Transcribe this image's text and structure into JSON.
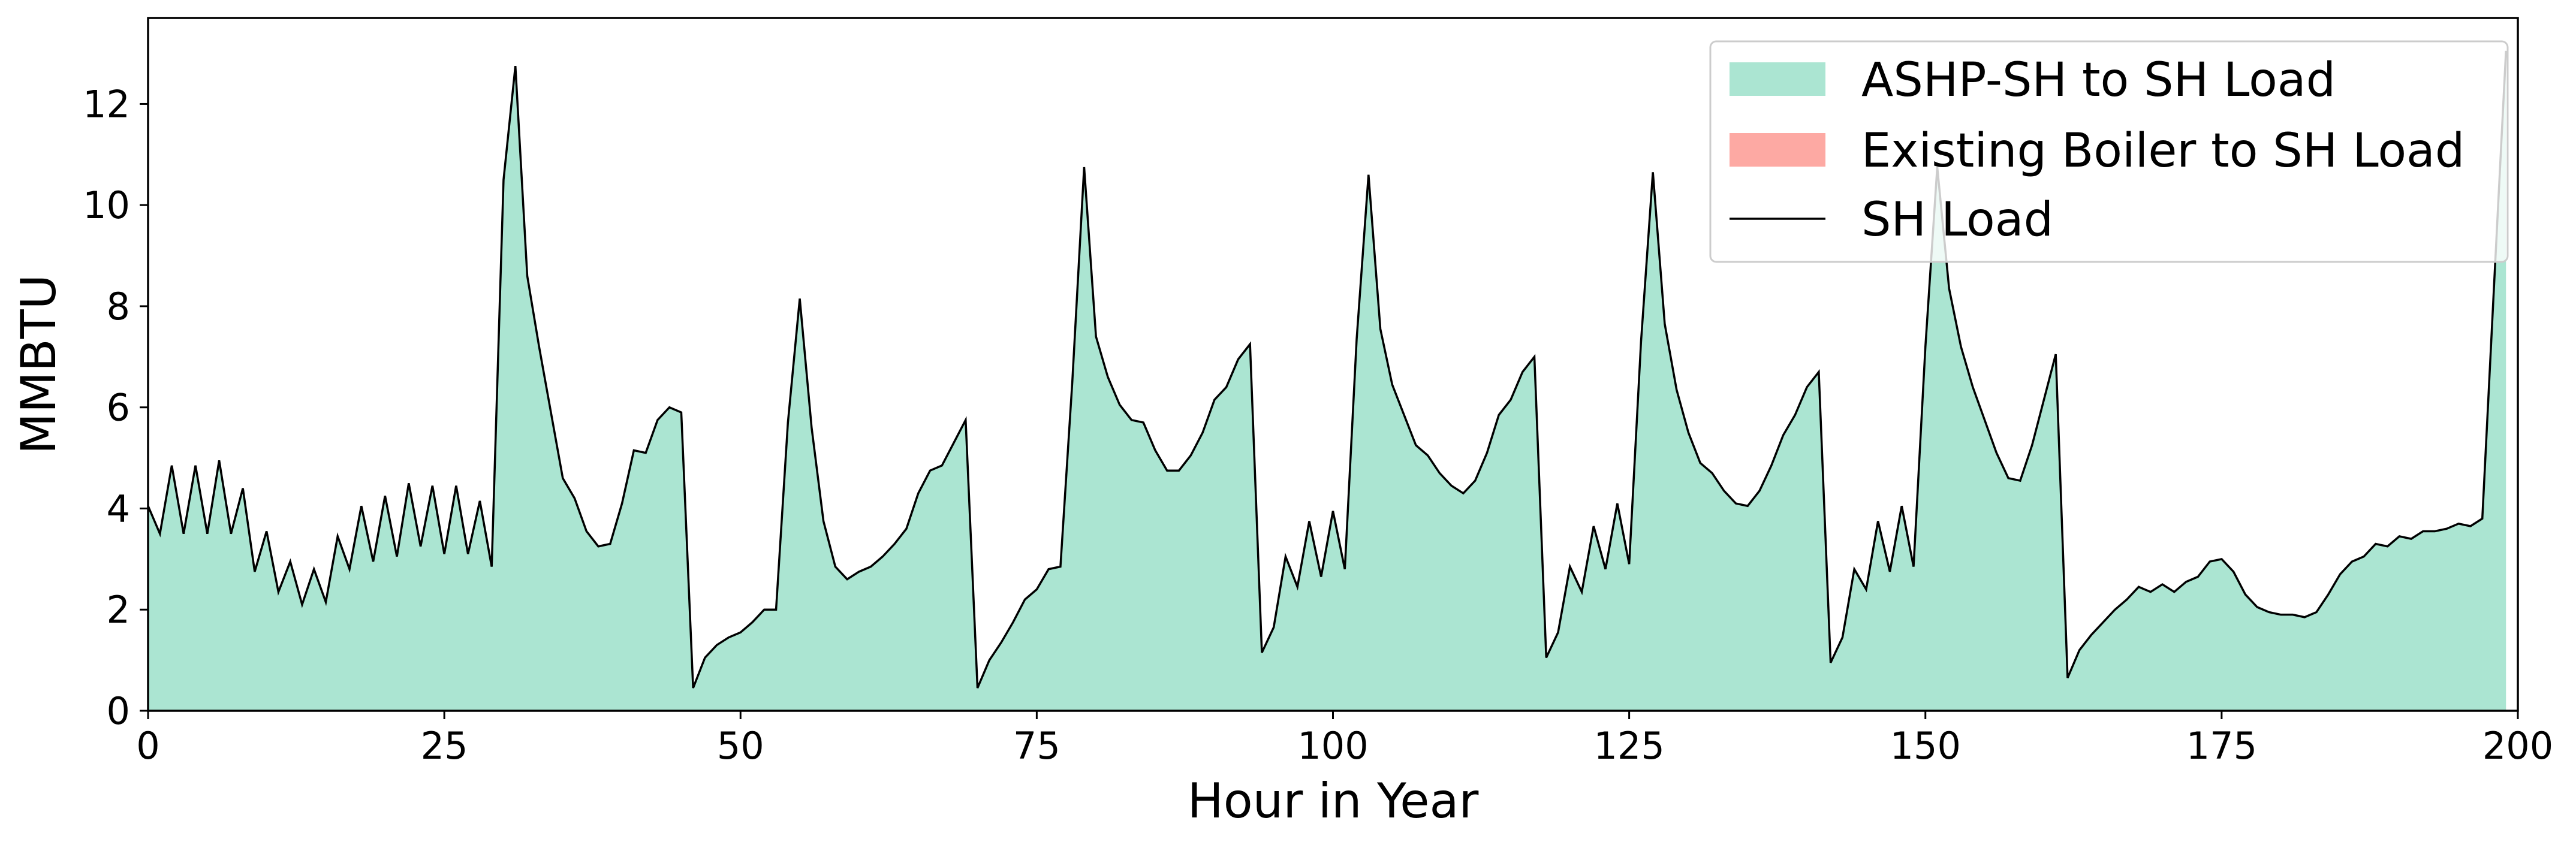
{
  "chart_data": {
    "type": "area",
    "xlabel": "Hour in Year",
    "ylabel": "MMBTU",
    "xlim": [
      0,
      200
    ],
    "ylim": [
      0,
      13.7
    ],
    "x_ticks": [
      0,
      25,
      50,
      75,
      100,
      125,
      150,
      175,
      200
    ],
    "y_ticks": [
      0,
      2,
      4,
      6,
      8,
      10,
      12
    ],
    "grid": false,
    "legend_position": "top-right",
    "series": [
      {
        "name": "ASHP-SH to SH Load",
        "kind": "area",
        "color": "#abe5d2"
      },
      {
        "name": "Existing Boiler to SH Load",
        "kind": "area",
        "color": "#fda9a3"
      },
      {
        "name": "SH Load",
        "kind": "line",
        "color": "#000000"
      }
    ],
    "x": [
      0,
      1,
      2,
      3,
      4,
      5,
      6,
      7,
      8,
      9,
      10,
      11,
      12,
      13,
      14,
      15,
      16,
      17,
      18,
      19,
      20,
      21,
      22,
      23,
      24,
      25,
      26,
      27,
      28,
      29,
      30,
      31,
      32,
      33,
      34,
      35,
      36,
      37,
      38,
      39,
      40,
      41,
      42,
      43,
      44,
      45,
      46,
      47,
      48,
      49,
      50,
      51,
      52,
      53,
      54,
      55,
      56,
      57,
      58,
      59,
      60,
      61,
      62,
      63,
      64,
      65,
      66,
      67,
      68,
      69,
      70,
      71,
      72,
      73,
      74,
      75,
      76,
      77,
      78,
      79,
      80,
      81,
      82,
      83,
      84,
      85,
      86,
      87,
      88,
      89,
      90,
      91,
      92,
      93,
      94,
      95,
      96,
      97,
      98,
      99,
      100,
      101,
      102,
      103,
      104,
      105,
      106,
      107,
      108,
      109,
      110,
      111,
      112,
      113,
      114,
      115,
      116,
      117,
      118,
      119,
      120,
      121,
      122,
      123,
      124,
      125,
      126,
      127,
      128,
      129,
      130,
      131,
      132,
      133,
      134,
      135,
      136,
      137,
      138,
      139,
      140,
      141,
      142,
      143,
      144,
      145,
      146,
      147,
      148,
      149,
      150,
      151,
      152,
      153,
      154,
      155,
      156,
      157,
      158,
      159,
      160,
      161,
      162,
      163,
      164,
      165,
      166,
      167,
      168,
      169,
      170,
      171,
      172,
      173,
      174,
      175,
      176,
      177,
      178,
      179,
      180,
      181,
      182,
      183,
      184,
      185,
      186,
      187,
      188,
      189,
      190,
      191,
      192,
      193,
      194,
      195,
      196,
      197,
      198,
      199
    ],
    "ashp_values": [
      4.05,
      3.5,
      4.85,
      3.5,
      4.85,
      3.5,
      4.95,
      3.5,
      4.4,
      2.75,
      3.55,
      2.35,
      2.95,
      2.1,
      2.8,
      2.15,
      3.45,
      2.8,
      4.05,
      2.95,
      4.25,
      3.05,
      4.5,
      3.25,
      4.45,
      3.1,
      4.45,
      3.1,
      4.15,
      2.85,
      10.5,
      12.75,
      8.6,
      7.2,
      5.9,
      4.6,
      4.2,
      3.55,
      3.25,
      3.3,
      4.1,
      5.15,
      5.1,
      5.75,
      6.0,
      5.9,
      0.45,
      1.05,
      1.3,
      1.45,
      1.55,
      1.75,
      2.0,
      2.0,
      5.7,
      8.15,
      5.6,
      3.75,
      2.85,
      2.6,
      2.75,
      2.85,
      3.05,
      3.3,
      3.6,
      4.3,
      4.75,
      4.85,
      5.3,
      5.75,
      0.45,
      1.0,
      1.35,
      1.75,
      2.2,
      2.4,
      2.8,
      2.85,
      6.5,
      10.75,
      7.4,
      6.6,
      6.05,
      5.75,
      5.7,
      5.15,
      4.75,
      4.75,
      5.05,
      5.5,
      6.15,
      6.4,
      6.95,
      7.25,
      1.15,
      1.65,
      3.05,
      2.45,
      3.75,
      2.65,
      3.95,
      2.8,
      7.35,
      10.6,
      7.55,
      6.45,
      5.85,
      5.25,
      5.05,
      4.7,
      4.45,
      4.3,
      4.55,
      5.1,
      5.85,
      6.15,
      6.7,
      7.0,
      1.05,
      1.55,
      2.85,
      2.35,
      3.65,
      2.8,
      4.1,
      2.9,
      7.3,
      10.65,
      7.65,
      6.35,
      5.5,
      4.9,
      4.7,
      4.35,
      4.1,
      4.05,
      4.35,
      4.85,
      5.45,
      5.85,
      6.4,
      6.7,
      0.95,
      1.45,
      2.8,
      2.4,
      3.75,
      2.75,
      4.05,
      2.85,
      7.2,
      10.75,
      8.35,
      7.2,
      6.4,
      5.75,
      5.1,
      4.6,
      4.55,
      5.25,
      6.15,
      7.05,
      0.65,
      1.2,
      1.5,
      1.75,
      2.0,
      2.2,
      2.45,
      2.35,
      2.5,
      2.35,
      2.55,
      2.65,
      2.95,
      3.0,
      2.75,
      2.3,
      2.05,
      1.95,
      1.9,
      1.9,
      1.85,
      1.95,
      2.3,
      2.7,
      2.95,
      3.05,
      3.3,
      3.25,
      3.45,
      3.4,
      3.55,
      3.55,
      3.6,
      3.7,
      3.65,
      3.8,
      8.45,
      13.05
    ],
    "boiler_values": [
      0,
      0,
      0,
      0,
      0,
      0,
      0,
      0,
      0,
      0,
      0,
      0,
      0,
      0,
      0,
      0,
      0,
      0,
      0,
      0,
      0,
      0,
      0,
      0,
      0,
      0,
      0,
      0,
      0,
      0,
      0,
      0,
      0,
      0,
      0,
      0,
      0,
      0,
      0,
      0,
      0,
      0,
      0,
      0,
      0,
      0,
      0,
      0,
      0,
      0,
      0,
      0,
      0,
      0,
      0,
      0,
      0,
      0,
      0,
      0,
      0,
      0,
      0,
      0,
      0,
      0,
      0,
      0,
      0,
      0,
      0,
      0,
      0,
      0,
      0,
      0,
      0,
      0,
      0,
      0,
      0,
      0,
      0,
      0,
      0,
      0,
      0,
      0,
      0,
      0,
      0,
      0,
      0,
      0,
      0,
      0,
      0,
      0,
      0,
      0,
      0,
      0,
      0,
      0,
      0,
      0,
      0,
      0,
      0,
      0,
      0,
      0,
      0,
      0,
      0,
      0,
      0,
      0,
      0,
      0,
      0,
      0,
      0,
      0,
      0,
      0,
      0,
      0,
      0,
      0,
      0,
      0,
      0,
      0,
      0,
      0,
      0,
      0,
      0,
      0,
      0,
      0,
      0,
      0,
      0,
      0,
      0,
      0,
      0,
      0,
      0,
      0,
      0,
      0,
      0,
      0,
      0,
      0,
      0,
      0,
      0,
      0,
      0,
      0,
      0,
      0,
      0,
      0,
      0,
      0,
      0,
      0,
      0,
      0,
      0,
      0,
      0,
      0,
      0,
      0,
      0,
      0,
      0,
      0,
      0,
      0,
      0,
      0,
      0,
      0,
      0,
      0,
      0,
      0,
      0,
      0,
      0,
      0,
      0,
      0
    ]
  }
}
